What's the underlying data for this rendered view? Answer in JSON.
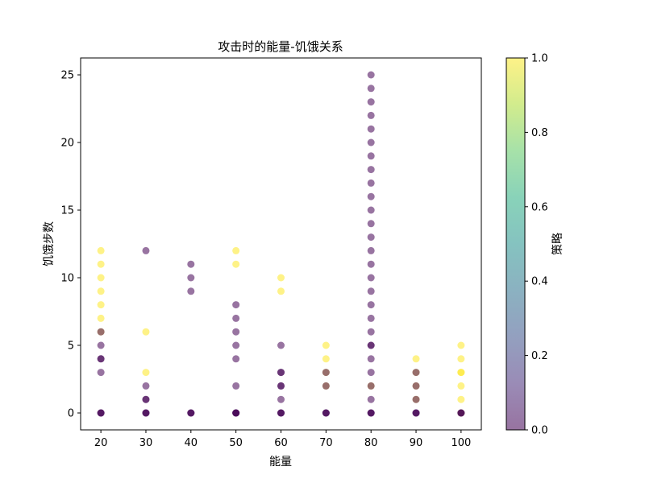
{
  "chart_data": {
    "type": "scatter",
    "title": "攻击时的能量-饥饿关系",
    "xlabel": "能量",
    "ylabel": "饥饿步数",
    "colorbar_label": "策略",
    "colormap": "viridis",
    "alpha": 0.55,
    "xlim": [
      15.5,
      104.5
    ],
    "ylim": [
      -1.25,
      26.25
    ],
    "x_ticks": [
      20,
      30,
      40,
      50,
      60,
      70,
      80,
      90,
      100
    ],
    "y_ticks": [
      0,
      5,
      10,
      15,
      20,
      25
    ],
    "colorbar_ticks": [
      "0.0",
      "0.2",
      "0.4",
      "0.6",
      "0.8",
      "1.0"
    ],
    "colorbar_range": [
      0,
      1
    ],
    "grid": false,
    "points": [
      {
        "x": 20,
        "y": 12,
        "strategy": 1
      },
      {
        "x": 20,
        "y": 11,
        "strategy": 1
      },
      {
        "x": 20,
        "y": 10,
        "strategy": 1
      },
      {
        "x": 20,
        "y": 9,
        "strategy": 1
      },
      {
        "x": 20,
        "y": 8,
        "strategy": 1
      },
      {
        "x": 20,
        "y": 7,
        "strategy": 1
      },
      {
        "x": 20,
        "y": 6,
        "strategy": 1
      },
      {
        "x": 20,
        "y": 6,
        "strategy": 0
      },
      {
        "x": 20,
        "y": 5,
        "strategy": 0
      },
      {
        "x": 20,
        "y": 4,
        "strategy": 0
      },
      {
        "x": 20,
        "y": 4,
        "strategy": 0
      },
      {
        "x": 20,
        "y": 3,
        "strategy": 0
      },
      {
        "x": 20,
        "y": 0,
        "strategy": 0
      },
      {
        "x": 20,
        "y": 0,
        "strategy": 0
      },
      {
        "x": 20,
        "y": 0,
        "strategy": 0
      },
      {
        "x": 30,
        "y": 12,
        "strategy": 0
      },
      {
        "x": 30,
        "y": 6,
        "strategy": 1
      },
      {
        "x": 30,
        "y": 3,
        "strategy": 1
      },
      {
        "x": 30,
        "y": 2,
        "strategy": 0
      },
      {
        "x": 30,
        "y": 1,
        "strategy": 0
      },
      {
        "x": 30,
        "y": 1,
        "strategy": 0
      },
      {
        "x": 30,
        "y": 0,
        "strategy": 0
      },
      {
        "x": 30,
        "y": 0,
        "strategy": 0
      },
      {
        "x": 30,
        "y": 0,
        "strategy": 0
      },
      {
        "x": 40,
        "y": 11,
        "strategy": 0
      },
      {
        "x": 40,
        "y": 10,
        "strategy": 0
      },
      {
        "x": 40,
        "y": 9,
        "strategy": 0
      },
      {
        "x": 40,
        "y": 0,
        "strategy": 0
      },
      {
        "x": 40,
        "y": 0,
        "strategy": 0
      },
      {
        "x": 40,
        "y": 0,
        "strategy": 0
      },
      {
        "x": 50,
        "y": 12,
        "strategy": 1
      },
      {
        "x": 50,
        "y": 11,
        "strategy": 1
      },
      {
        "x": 50,
        "y": 8,
        "strategy": 0
      },
      {
        "x": 50,
        "y": 7,
        "strategy": 0
      },
      {
        "x": 50,
        "y": 6,
        "strategy": 0
      },
      {
        "x": 50,
        "y": 5,
        "strategy": 0
      },
      {
        "x": 50,
        "y": 4,
        "strategy": 0
      },
      {
        "x": 50,
        "y": 2,
        "strategy": 0
      },
      {
        "x": 50,
        "y": 0,
        "strategy": 0
      },
      {
        "x": 50,
        "y": 0,
        "strategy": 0
      },
      {
        "x": 50,
        "y": 0,
        "strategy": 0
      },
      {
        "x": 50,
        "y": 0,
        "strategy": 0
      },
      {
        "x": 60,
        "y": 10,
        "strategy": 1
      },
      {
        "x": 60,
        "y": 9,
        "strategy": 1
      },
      {
        "x": 60,
        "y": 5,
        "strategy": 0
      },
      {
        "x": 60,
        "y": 3,
        "strategy": 0
      },
      {
        "x": 60,
        "y": 3,
        "strategy": 0
      },
      {
        "x": 60,
        "y": 2,
        "strategy": 0
      },
      {
        "x": 60,
        "y": 2,
        "strategy": 0
      },
      {
        "x": 60,
        "y": 1,
        "strategy": 0
      },
      {
        "x": 60,
        "y": 0,
        "strategy": 0
      },
      {
        "x": 60,
        "y": 0,
        "strategy": 0
      },
      {
        "x": 60,
        "y": 0,
        "strategy": 0
      },
      {
        "x": 70,
        "y": 5,
        "strategy": 1
      },
      {
        "x": 70,
        "y": 4,
        "strategy": 1
      },
      {
        "x": 70,
        "y": 3,
        "strategy": 1
      },
      {
        "x": 70,
        "y": 3,
        "strategy": 0
      },
      {
        "x": 70,
        "y": 2,
        "strategy": 1
      },
      {
        "x": 70,
        "y": 2,
        "strategy": 0
      },
      {
        "x": 70,
        "y": 0,
        "strategy": 0
      },
      {
        "x": 70,
        "y": 0,
        "strategy": 0
      },
      {
        "x": 70,
        "y": 0,
        "strategy": 0
      },
      {
        "x": 80,
        "y": 25,
        "strategy": 0
      },
      {
        "x": 80,
        "y": 24,
        "strategy": 0
      },
      {
        "x": 80,
        "y": 23,
        "strategy": 0
      },
      {
        "x": 80,
        "y": 22,
        "strategy": 0
      },
      {
        "x": 80,
        "y": 21,
        "strategy": 0
      },
      {
        "x": 80,
        "y": 20,
        "strategy": 0
      },
      {
        "x": 80,
        "y": 19,
        "strategy": 0
      },
      {
        "x": 80,
        "y": 18,
        "strategy": 0
      },
      {
        "x": 80,
        "y": 17,
        "strategy": 0
      },
      {
        "x": 80,
        "y": 16,
        "strategy": 0
      },
      {
        "x": 80,
        "y": 15,
        "strategy": 0
      },
      {
        "x": 80,
        "y": 14,
        "strategy": 0
      },
      {
        "x": 80,
        "y": 13,
        "strategy": 0
      },
      {
        "x": 80,
        "y": 12,
        "strategy": 0
      },
      {
        "x": 80,
        "y": 11,
        "strategy": 0
      },
      {
        "x": 80,
        "y": 10,
        "strategy": 0
      },
      {
        "x": 80,
        "y": 9,
        "strategy": 0
      },
      {
        "x": 80,
        "y": 8,
        "strategy": 0
      },
      {
        "x": 80,
        "y": 7,
        "strategy": 0
      },
      {
        "x": 80,
        "y": 6,
        "strategy": 0
      },
      {
        "x": 80,
        "y": 5,
        "strategy": 0
      },
      {
        "x": 80,
        "y": 5,
        "strategy": 0
      },
      {
        "x": 80,
        "y": 4,
        "strategy": 0
      },
      {
        "x": 80,
        "y": 3,
        "strategy": 0
      },
      {
        "x": 80,
        "y": 2,
        "strategy": 1
      },
      {
        "x": 80,
        "y": 2,
        "strategy": 0
      },
      {
        "x": 80,
        "y": 1,
        "strategy": 0
      },
      {
        "x": 80,
        "y": 0,
        "strategy": 0
      },
      {
        "x": 80,
        "y": 0,
        "strategy": 0
      },
      {
        "x": 80,
        "y": 0,
        "strategy": 0
      },
      {
        "x": 90,
        "y": 4,
        "strategy": 1
      },
      {
        "x": 90,
        "y": 3,
        "strategy": 1
      },
      {
        "x": 90,
        "y": 3,
        "strategy": 0
      },
      {
        "x": 90,
        "y": 2,
        "strategy": 1
      },
      {
        "x": 90,
        "y": 2,
        "strategy": 0
      },
      {
        "x": 90,
        "y": 1,
        "strategy": 1
      },
      {
        "x": 90,
        "y": 1,
        "strategy": 0
      },
      {
        "x": 90,
        "y": 0,
        "strategy": 0
      },
      {
        "x": 90,
        "y": 0,
        "strategy": 0
      },
      {
        "x": 90,
        "y": 0,
        "strategy": 0
      },
      {
        "x": 100,
        "y": 5,
        "strategy": 1
      },
      {
        "x": 100,
        "y": 4,
        "strategy": 1
      },
      {
        "x": 100,
        "y": 3,
        "strategy": 1
      },
      {
        "x": 100,
        "y": 3,
        "strategy": 1
      },
      {
        "x": 100,
        "y": 2,
        "strategy": 1
      },
      {
        "x": 100,
        "y": 1,
        "strategy": 1
      },
      {
        "x": 100,
        "y": 0,
        "strategy": 1
      },
      {
        "x": 100,
        "y": 0,
        "strategy": 0
      },
      {
        "x": 100,
        "y": 0,
        "strategy": 0
      },
      {
        "x": 100,
        "y": 0,
        "strategy": 0
      }
    ]
  }
}
